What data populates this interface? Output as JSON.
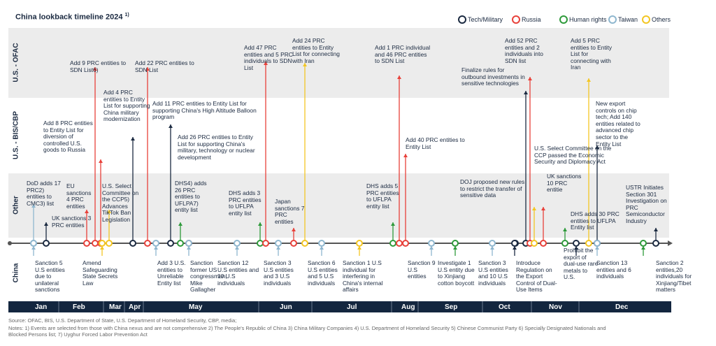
{
  "header": {
    "title": "China lookback timeline 2024",
    "title_note": "1)"
  },
  "legend": [
    {
      "label": "Tech/Military",
      "color": "#1b2a41"
    },
    {
      "label": "Russia",
      "color": "#e8413a"
    },
    {
      "label": "Human rights",
      "color": "#2e9a3a"
    },
    {
      "label": "Taiwan",
      "color": "#8fb7cf"
    },
    {
      "label": "Others",
      "color": "#f3c623"
    }
  ],
  "rows": [
    "U.S. - OFAC",
    "U.S. - BIS/CBP",
    "Other",
    "China"
  ],
  "months": [
    "Jan",
    "Feb",
    "Mar",
    "Apr",
    "May",
    "Jun",
    "Jul",
    "Aug",
    "Sep",
    "Oct",
    "Nov",
    "Dec"
  ],
  "events": [
    {
      "text": "DoD adds 17 PRC2) entities to CMC3) list",
      "category": "Taiwan"
    },
    {
      "text": "UK sanctions 3 PRC entities",
      "category": "Tech/Military"
    },
    {
      "text": "EU sanctions 4 PRC entities",
      "category": "Russia"
    },
    {
      "text": "Add 9 PRC entities to SDN List6)",
      "category": "Russia"
    },
    {
      "text": "Add 8 PRC entities to Entity List for diversion of controlled U.S. goods to Russia",
      "category": "Russia"
    },
    {
      "text": "U.S. Select Committee on the CCP5) Advances TikTok Ban Legislation",
      "category": "Others"
    },
    {
      "text": "Add 4 PRC entities to Entity List for supporting China military modernization",
      "category": "Tech/Military"
    },
    {
      "text": "Add 22 PRC entities to SDN List",
      "category": "Russia"
    },
    {
      "text": "Add 11 PRC entities to Entity List for supporting China's High Altitude Balloon program",
      "category": "Tech/Military"
    },
    {
      "text": "DHS4) adds 26 PRC entities to UFLPA7) entity list",
      "category": "Human rights"
    },
    {
      "text": "Add 26 PRC entities to Entity List for supporting China's military, technology or nuclear development",
      "category": "Russia"
    },
    {
      "text": "DHS adds 3 PRC entities to UFLPA entity list",
      "category": "Human rights"
    },
    {
      "text": "Add 47 PRC entities and 5 PRC individuals to SDN List",
      "category": "Russia"
    },
    {
      "text": "Japan sanctions 7 PRC entities",
      "category": "Russia"
    },
    {
      "text": "Add 24 PRC entities to Entity List for connecting with Iran",
      "category": "Others"
    },
    {
      "text": "DHS adds 5 PRC entities to UFLPA entity list",
      "category": "Human rights"
    },
    {
      "text": "Add 1 PRC individual and 46 PRC entities to SDN List",
      "category": "Russia"
    },
    {
      "text": "Add 40 PRC entities to Entity List",
      "category": "Russia"
    },
    {
      "text": "DOJ proposed new rules to restrict the transfer of sensitive data",
      "category": "Tech/Military"
    },
    {
      "text": "Finalize rules for outbound investments in sensitive technologies",
      "category": "Tech/Military"
    },
    {
      "text": "Add 52 PRC entities and 2 individuals into SDN list",
      "category": "Russia"
    },
    {
      "text": "U.S. Select Committee on the CCP passed the Economic Security and Diplomacy Act",
      "category": "Others"
    },
    {
      "text": "UK sanctions 10 PRC entitie",
      "category": "Russia"
    },
    {
      "text": "DHS adds 30 PRC entities to UFLPA Entity list",
      "category": "Human rights"
    },
    {
      "text": "Add 5 PRC entities to Entity List for connecting with Iran",
      "category": "Others"
    },
    {
      "text": "New export controls on chip tech; Add 140 entities related to advanced chip sector to the Entity List",
      "category": "Tech/Military"
    },
    {
      "text": "USTR Initiates Section 301 Investigation on PRC Semiconductor Industry",
      "category": "Tech/Military"
    }
  ],
  "china_events": [
    {
      "text": "Sanction 5 U.S entities due to unilateral sanctions",
      "category": "Taiwan"
    },
    {
      "text": "Amend Safeguarding State Secrets Law",
      "category": "Others"
    },
    {
      "text": "Add 3 U.S. entities to Unreliable Entity list",
      "category": "Taiwan"
    },
    {
      "text": "Sanction former US congressman, Mike Gallagher",
      "category": "Taiwan"
    },
    {
      "text": "Sanction 12 U.S entities and 10 U.S individuals",
      "category": "Taiwan"
    },
    {
      "text": "Sanction 3 U.S entities and 3 U.S individuals",
      "category": "Taiwan"
    },
    {
      "text": "Sanction 6 U.S entities and 5 U.S individuals",
      "category": "Taiwan"
    },
    {
      "text": "Sanction 1 U.S individual for interfering in China's internal affairs",
      "category": "Others"
    },
    {
      "text": "Sanction 9 U.S entities",
      "category": "Taiwan"
    },
    {
      "text": "Investigate 1 U.S entity due to Xinjiang cotton boycott",
      "category": "Human rights"
    },
    {
      "text": "Sanction 3 U.S entities and 10 U.S individuals",
      "category": "Taiwan"
    },
    {
      "text": "Introduce Regulation on the Export Control of Dual-Use Items",
      "category": "Tech/Military"
    },
    {
      "text": "Prohibit the export of dual-use rare metals to U.S.",
      "category": "Tech/Military"
    },
    {
      "text": "Sanction 13 entities and 6 individuals",
      "category": "Taiwan"
    },
    {
      "text": "Sanction 2 entities,20 individuals for Xinjiang/Tibet matters",
      "category": "Human rights"
    }
  ],
  "footer": {
    "source": "Source: OFAC, BIS, U.S. Department of State, U.S. Department of Homeland Security, CBP, media;",
    "notes": "Notes: 1) Events are selected from those with China nexus and are not comprehensive 2) The People's Republic of China 3) China Military Companies 4) U.S. Department of Homeland Security 5) Chinese Communist Party 6) Specially Designated Nationals and Blocked Persons list; 7) Uyghur Forced Labor Prevention Act"
  }
}
